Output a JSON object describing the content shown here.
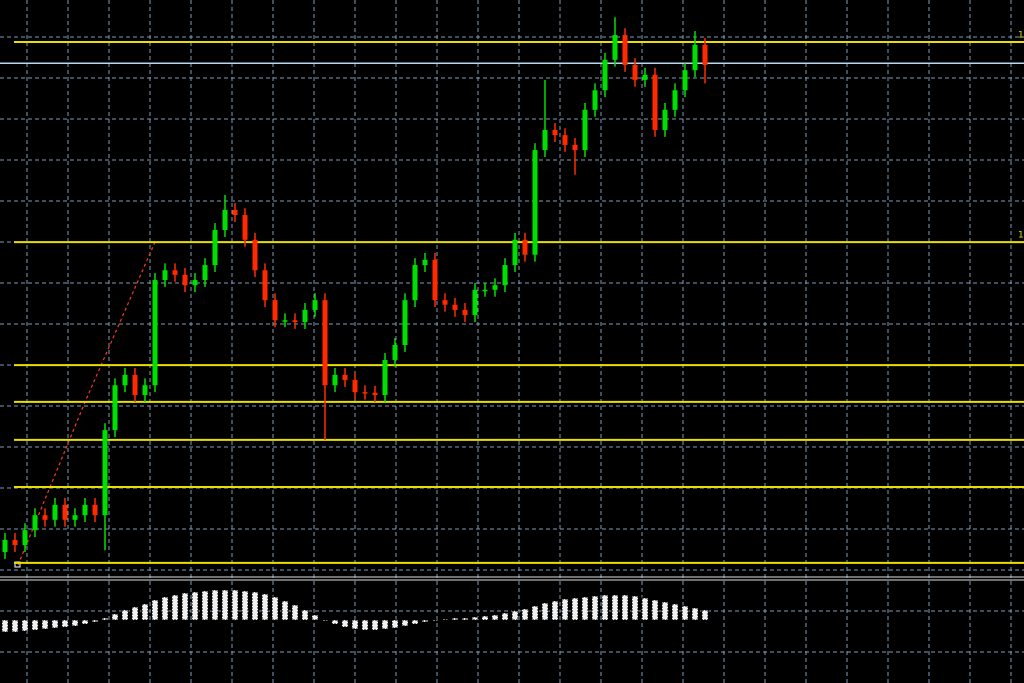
{
  "chart_data": [
    {
      "type": "candlestick",
      "ylim": [
        0,
        100
      ],
      "grid": true,
      "up_color": "#00e000",
      "down_color": "#ff2a00",
      "open": [
        4.0,
        6.1,
        5.2,
        7.8,
        10.4,
        9.6,
        12.2,
        9.6,
        10.4,
        12.2,
        10.4,
        25.2,
        33.0,
        34.8,
        31.3,
        33.0,
        51.3,
        53.0,
        52.2,
        50.4,
        51.3,
        53.9,
        60.0,
        63.5,
        62.6,
        58.3,
        53.0,
        47.8,
        44.3,
        44.3,
        44.0,
        46.1,
        47.8,
        33.0,
        34.8,
        33.9,
        31.8,
        31.7,
        31.3,
        37.4,
        40.0,
        47.8,
        53.9,
        54.8,
        47.8,
        47.0,
        46.1,
        45.2,
        49.6,
        49.6,
        50.4,
        53.9,
        58.3,
        55.7,
        73.9,
        77.4,
        76.5,
        74.8,
        73.9,
        80.9,
        84.3,
        89.6,
        93.9,
        88.7,
        86.1,
        87.0,
        77.4,
        80.9,
        84.3,
        87.8,
        92.2
      ],
      "high": [
        7.3,
        7.3,
        9.0,
        11.6,
        11.6,
        13.4,
        13.4,
        11.6,
        13.4,
        13.4,
        26.4,
        34.2,
        36.0,
        36.0,
        34.2,
        52.5,
        54.2,
        54.2,
        53.4,
        52.5,
        55.1,
        61.2,
        66.1,
        64.7,
        63.8,
        59.5,
        54.2,
        49.0,
        45.5,
        45.5,
        47.3,
        49.0,
        49.0,
        36.0,
        36.0,
        35.1,
        33.0,
        32.9,
        38.6,
        41.2,
        49.0,
        55.1,
        56.0,
        56.0,
        49.0,
        48.2,
        47.3,
        50.8,
        50.8,
        51.6,
        55.1,
        59.5,
        59.5,
        75.1,
        86.1,
        78.6,
        77.7,
        76.0,
        82.1,
        85.5,
        90.8,
        97.0,
        95.1,
        89.9,
        88.2,
        88.2,
        82.1,
        85.5,
        89.0,
        94.6,
        93.4
      ],
      "low": [
        2.8,
        4.0,
        4.0,
        6.6,
        8.4,
        8.4,
        8.4,
        8.4,
        9.2,
        9.2,
        4.3,
        24.0,
        31.8,
        30.1,
        30.1,
        31.8,
        50.1,
        51.0,
        49.2,
        49.2,
        50.1,
        52.7,
        58.8,
        61.4,
        57.1,
        51.8,
        46.6,
        43.1,
        43.1,
        42.8,
        42.8,
        44.9,
        23.5,
        31.8,
        32.7,
        30.6,
        30.5,
        30.1,
        30.1,
        36.2,
        38.8,
        46.6,
        52.7,
        46.6,
        45.8,
        44.9,
        44.0,
        44.0,
        48.4,
        48.4,
        49.2,
        52.7,
        54.5,
        54.5,
        72.7,
        75.3,
        73.6,
        69.6,
        72.7,
        79.7,
        83.1,
        88.4,
        87.5,
        84.9,
        84.9,
        76.2,
        76.2,
        79.7,
        83.1,
        86.6,
        85.5
      ],
      "close": [
        6.1,
        5.2,
        7.8,
        10.4,
        9.6,
        12.2,
        9.6,
        10.4,
        12.2,
        10.4,
        25.2,
        33.0,
        34.8,
        31.3,
        33.0,
        51.3,
        53.0,
        52.2,
        50.4,
        51.3,
        53.9,
        60.0,
        63.5,
        62.6,
        58.3,
        53.0,
        47.8,
        44.3,
        44.3,
        44.0,
        46.1,
        47.8,
        33.0,
        34.8,
        33.9,
        31.8,
        31.7,
        31.3,
        37.4,
        40.0,
        47.8,
        53.9,
        54.8,
        47.8,
        47.0,
        46.1,
        45.2,
        49.6,
        49.6,
        50.4,
        53.9,
        58.3,
        55.7,
        73.9,
        77.4,
        76.5,
        74.8,
        73.9,
        80.9,
        84.3,
        89.6,
        93.9,
        88.7,
        86.1,
        87.0,
        77.4,
        80.9,
        84.3,
        87.8,
        92.2,
        88.7
      ],
      "hlines": [
        {
          "value": 92.7,
          "label": "1"
        },
        {
          "value": 57.9,
          "label": "1"
        },
        36.5,
        30.1,
        23.5,
        15.3,
        2.1
      ],
      "hline_color": "#e8e000",
      "bid_line": 89.0,
      "bid_color": "#b8d8f0"
    },
    {
      "type": "histogram",
      "ylim": [
        -63,
        42
      ],
      "color": "#f0f0f0",
      "values": [
        -12,
        -12,
        -11,
        -10,
        -9,
        -8,
        -7,
        -6,
        -4,
        -2,
        2,
        6,
        10,
        13,
        16,
        20,
        23,
        25,
        27,
        28,
        29,
        30,
        30,
        30,
        29,
        28,
        26,
        23,
        19,
        15,
        10,
        5,
        0,
        -4,
        -7,
        -9,
        -10,
        -10,
        -9,
        -8,
        -6,
        -4,
        -2,
        0,
        1,
        2,
        2,
        3,
        4,
        5,
        7,
        9,
        11,
        14,
        17,
        19,
        21,
        22,
        23,
        24,
        25,
        25,
        25,
        24,
        22,
        20,
        18,
        16,
        14,
        12,
        10
      ]
    }
  ]
}
